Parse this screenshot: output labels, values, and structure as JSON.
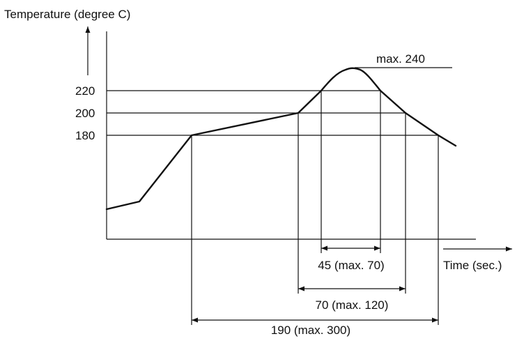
{
  "diagram": {
    "y_axis_label": "Temperature (degree C)",
    "x_axis_label": "Time (sec.)",
    "y_tick_labels": [
      "220",
      "200",
      "180"
    ],
    "peak_label": "max. 240",
    "durations": [
      {
        "label": "45 (max. 70)",
        "applies_above": "220"
      },
      {
        "label": "70 (max. 120)",
        "applies_above": "200"
      },
      {
        "label": "190 (max. 300)",
        "applies_above": "180"
      }
    ]
  },
  "colors": {
    "line": "#111111",
    "background": "#ffffff"
  }
}
